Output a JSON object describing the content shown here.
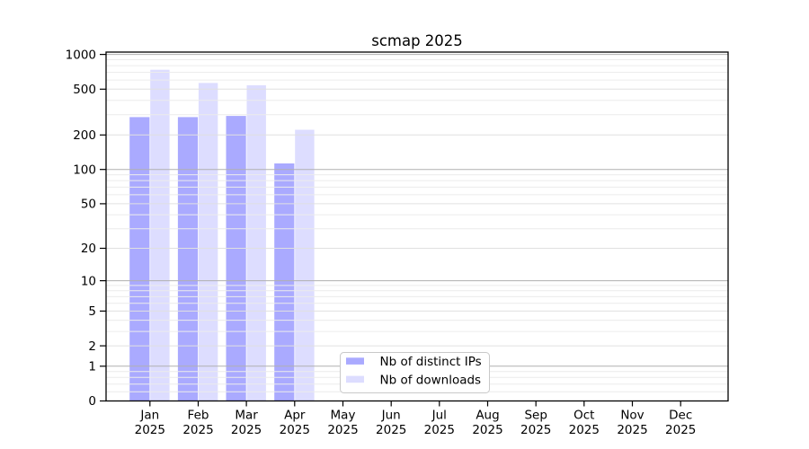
{
  "chart_data": {
    "type": "bar",
    "title": "scmap 2025",
    "categories": [
      "Jan",
      "Feb",
      "Mar",
      "Apr",
      "May",
      "Jun",
      "Jul",
      "Aug",
      "Sep",
      "Oct",
      "Nov",
      "Dec"
    ],
    "year_label": "2025",
    "series": [
      {
        "name": "Nb of distinct IPs",
        "color": "#aaaaff",
        "values": [
          286,
          286,
          293,
          113,
          null,
          null,
          null,
          null,
          null,
          null,
          null,
          null
        ]
      },
      {
        "name": "Nb of downloads",
        "color": "#ddddff",
        "values": [
          736,
          566,
          541,
          222,
          null,
          null,
          null,
          null,
          null,
          null,
          null,
          null
        ]
      }
    ],
    "yticks": [
      1000,
      500,
      200,
      100,
      50,
      20,
      10,
      5,
      2,
      1,
      0
    ],
    "yscale": "log1p",
    "ylim": [
      0,
      1050
    ],
    "xlabel": "",
    "ylabel": "",
    "grid": true,
    "legend_position": "inside-bottom-center",
    "grid_colors": {
      "major": "#b0b0b0",
      "labeled_minor": "#e0e0e0",
      "minor": "#ececec"
    }
  }
}
